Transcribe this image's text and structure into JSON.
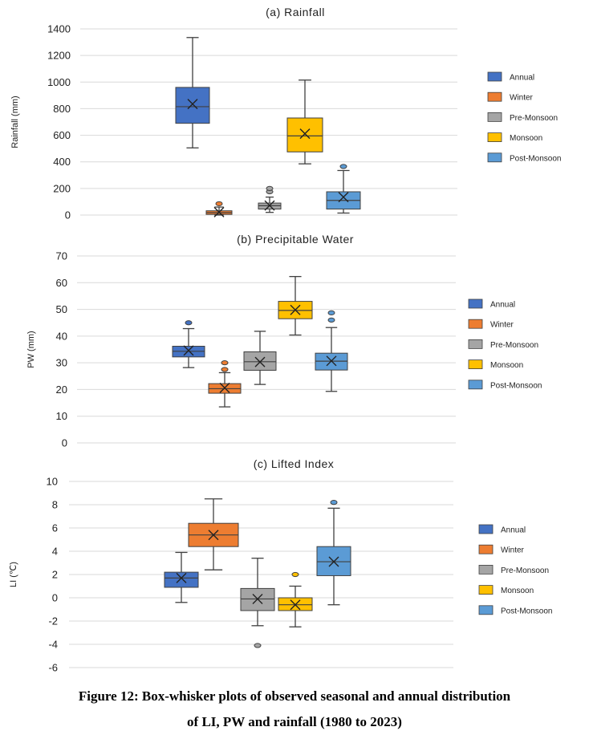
{
  "figure": {
    "caption_line1": "Figure 12: Box-whisker plots of observed seasonal and annual distribution",
    "caption_line2": "of LI, PW and rainfall (1980 to 2023)"
  },
  "chart_data": [
    {
      "type": "box",
      "title": "(a) Rainfall",
      "ylabel": "Rainfall (mm)",
      "ylim": [
        0,
        1400
      ],
      "yticks": [
        0,
        200,
        400,
        600,
        800,
        1000,
        1200,
        1400
      ],
      "legend_position": "right",
      "grid": true,
      "series": [
        {
          "name": "Annual",
          "color": "#4472C4",
          "min": 505,
          "q1": 690,
          "median": 815,
          "q3": 960,
          "max": 1335,
          "mean": 835,
          "outliers": []
        },
        {
          "name": "Winter",
          "color": "#ED7D31",
          "min": 0,
          "q1": 5,
          "median": 18,
          "q3": 32,
          "max": 60,
          "mean": 22,
          "outliers": [
            85
          ]
        },
        {
          "name": "Pre-Monsoon",
          "color": "#A5A5A5",
          "min": 20,
          "q1": 45,
          "median": 70,
          "q3": 90,
          "max": 135,
          "mean": 72,
          "outliers": [
            175,
            200
          ]
        },
        {
          "name": "Monsoon",
          "color": "#FFC000",
          "min": 385,
          "q1": 475,
          "median": 595,
          "q3": 730,
          "max": 1015,
          "mean": 612,
          "outliers": []
        },
        {
          "name": "Post-Monsoon",
          "color": "#5B9BD5",
          "min": 15,
          "q1": 45,
          "median": 110,
          "q3": 175,
          "max": 335,
          "mean": 135,
          "outliers": [
            365
          ]
        }
      ]
    },
    {
      "type": "box",
      "title": "(b) Precipitable Water",
      "ylabel": "PW (mm)",
      "ylim": [
        0,
        70
      ],
      "yticks": [
        0,
        10,
        20,
        30,
        40,
        50,
        60,
        70
      ],
      "legend_position": "right",
      "grid": true,
      "series": [
        {
          "name": "Annual",
          "color": "#4472C4",
          "min": 28.2,
          "q1": 32.2,
          "median": 34.3,
          "q3": 36.2,
          "max": 42.8,
          "mean": 34.6,
          "outliers": [
            45
          ]
        },
        {
          "name": "Winter",
          "color": "#ED7D31",
          "min": 13.5,
          "q1": 18.6,
          "median": 20.3,
          "q3": 22.2,
          "max": 26.3,
          "mean": 20.6,
          "outliers": [
            27.5,
            30
          ]
        },
        {
          "name": "Pre-Monsoon",
          "color": "#A5A5A5",
          "min": 21.9,
          "q1": 27.2,
          "median": 30.4,
          "q3": 34.1,
          "max": 41.8,
          "mean": 30.3,
          "outliers": []
        },
        {
          "name": "Monsoon",
          "color": "#FFC000",
          "min": 40.4,
          "q1": 46.5,
          "median": 49.6,
          "q3": 53,
          "max": 62.3,
          "mean": 49.8,
          "outliers": []
        },
        {
          "name": "Post-Monsoon",
          "color": "#5B9BD5",
          "min": 19.3,
          "q1": 27.3,
          "median": 30.6,
          "q3": 33.6,
          "max": 43.2,
          "mean": 30.7,
          "outliers": [
            46,
            48.7
          ]
        }
      ]
    },
    {
      "type": "box",
      "title": "(c) Lifted Index",
      "ylabel": "LI (℃)",
      "ylim": [
        -6,
        10
      ],
      "yticks": [
        -6,
        -4,
        -2,
        0,
        2,
        4,
        6,
        8,
        10
      ],
      "legend_position": "right",
      "grid": true,
      "series": [
        {
          "name": "Annual",
          "color": "#4472C4",
          "min": -0.4,
          "q1": 0.9,
          "median": 1.7,
          "q3": 2.2,
          "max": 3.9,
          "mean": 1.7,
          "outliers": []
        },
        {
          "name": "Winter",
          "color": "#ED7D31",
          "min": 2.4,
          "q1": 4.4,
          "median": 5.4,
          "q3": 6.4,
          "max": 8.5,
          "mean": 5.4,
          "outliers": []
        },
        {
          "name": "Pre-Monsoon",
          "color": "#A5A5A5",
          "min": -2.4,
          "q1": -1.1,
          "median": -0.1,
          "q3": 0.8,
          "max": 3.4,
          "mean": -0.1,
          "outliers": [
            -4.1
          ]
        },
        {
          "name": "Monsoon",
          "color": "#FFC000",
          "min": -2.5,
          "q1": -1.1,
          "median": -0.6,
          "q3": 0,
          "max": 1,
          "mean": -0.6,
          "outliers": [
            2
          ]
        },
        {
          "name": "Post-Monsoon",
          "color": "#5B9BD5",
          "min": -0.6,
          "q1": 1.9,
          "median": 3.1,
          "q3": 4.4,
          "max": 7.7,
          "mean": 3.1,
          "outliers": [
            8.2
          ]
        }
      ]
    }
  ]
}
